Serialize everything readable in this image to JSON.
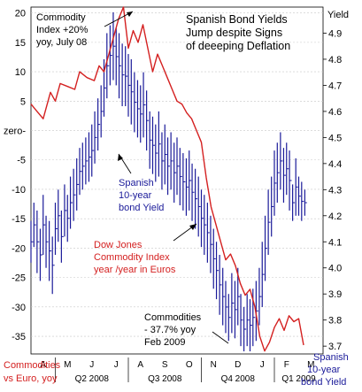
{
  "title_lines": [
    "Spanish Bond Yields",
    "Jump despite Signs",
    "of deeeping Deflation"
  ],
  "colors": {
    "commodity": "#d42020",
    "yield": "#1a1a99",
    "text": "#000000",
    "grid": "#c8c8c8"
  },
  "annotations": {
    "commodity_peak": [
      "Commodity",
      "Index +20%",
      "yoy, July 08"
    ],
    "spanish_yield": [
      "Spanish",
      "10-year",
      "bond Yield"
    ],
    "dow_jones": [
      "Dow Jones",
      "Commodity Index",
      "year /year in Euros"
    ],
    "commodities_low": [
      "Commodities",
      "- 37.7% yoy",
      "Feb 2009"
    ]
  },
  "bottom_labels": {
    "left": [
      "Commodities",
      "vs Euro, yoy"
    ],
    "right": [
      "Spanish",
      "10-year",
      "bond Yield"
    ]
  },
  "chart_data": {
    "type": "line",
    "x": {
      "months": [
        "A",
        "M",
        "J",
        "J",
        "A",
        "S",
        "O",
        "N",
        "D",
        "J",
        "F",
        "M"
      ],
      "quarters": [
        "Q2 2008",
        "Q3 2008",
        "Q4 2008",
        "Q1 2009"
      ]
    },
    "left_axis": {
      "ylabel": "",
      "ylim": [
        -38,
        21
      ],
      "ticks": [
        20,
        15,
        10,
        5,
        0,
        -5,
        -10,
        -15,
        -20,
        -25,
        -30,
        -35
      ],
      "tick_labels": [
        "20",
        "15",
        "10",
        "5",
        "zero-",
        "-5",
        "-10",
        "-15",
        "-20",
        "-25",
        "-30",
        "-35"
      ]
    },
    "right_axis": {
      "ylabel": "Yield",
      "ylim": [
        3.67,
        5.0
      ],
      "ticks": [
        4.9,
        4.8,
        4.7,
        4.6,
        4.5,
        4.4,
        4.3,
        4.2,
        4.1,
        4.0,
        3.9,
        3.8,
        3.7
      ]
    },
    "grid": true,
    "series": [
      {
        "name": "Dow Jones Commodity Index year /year in Euros",
        "axis": "left",
        "style": "line",
        "x": [
          0.0,
          0.2,
          0.5,
          0.8,
          1.0,
          1.2,
          1.5,
          1.8,
          2.0,
          2.3,
          2.6,
          2.8,
          3.0,
          3.2,
          3.4,
          3.6,
          3.8,
          4.0,
          4.2,
          4.4,
          4.6,
          4.8,
          5.0,
          5.2,
          5.4,
          5.6,
          5.8,
          6.0,
          6.2,
          6.4,
          6.6,
          6.8,
          7.0,
          7.2,
          7.4,
          7.6,
          7.8,
          8.0,
          8.2,
          8.4,
          8.6,
          8.8,
          9.0,
          9.2,
          9.4,
          9.6,
          9.8,
          10.0,
          10.2,
          10.4,
          10.6,
          10.8,
          11.0,
          11.2
        ],
        "values": [
          4.5,
          3.5,
          2.0,
          6.5,
          5.0,
          8.0,
          7.5,
          7.0,
          10.0,
          9.0,
          8.5,
          11.0,
          10.0,
          13.0,
          16.0,
          19.0,
          21.0,
          14.0,
          17.0,
          15.0,
          18.0,
          14.0,
          10.0,
          13.0,
          11.0,
          9.0,
          7.0,
          5.0,
          4.5,
          3.0,
          2.0,
          0.0,
          -2.0,
          -8.0,
          -13.0,
          -16.0,
          -19.0,
          -22.0,
          -21.0,
          -23.0,
          -26.0,
          -28.0,
          -27.0,
          -30.0,
          -35.0,
          -37.5,
          -36.0,
          -33.5,
          -32.0,
          -34.0,
          -31.5,
          -32.5,
          -32.0,
          -36.5
        ]
      },
      {
        "name": "Spanish 10-year bond Yield",
        "axis": "right",
        "style": "hilo",
        "x": [
          0.0,
          0.12,
          0.25,
          0.38,
          0.5,
          0.62,
          0.75,
          0.88,
          1.0,
          1.12,
          1.25,
          1.38,
          1.5,
          1.62,
          1.75,
          1.88,
          2.0,
          2.12,
          2.25,
          2.38,
          2.5,
          2.62,
          2.75,
          2.88,
          3.0,
          3.12,
          3.25,
          3.38,
          3.5,
          3.62,
          3.75,
          3.88,
          4.0,
          4.12,
          4.25,
          4.38,
          4.5,
          4.62,
          4.75,
          4.88,
          5.0,
          5.12,
          5.25,
          5.38,
          5.5,
          5.62,
          5.75,
          5.88,
          6.0,
          6.12,
          6.25,
          6.38,
          6.5,
          6.62,
          6.75,
          6.88,
          7.0,
          7.12,
          7.25,
          7.38,
          7.5,
          7.62,
          7.75,
          7.88,
          8.0,
          8.12,
          8.25,
          8.38,
          8.5,
          8.62,
          8.75,
          8.88,
          9.0,
          9.12,
          9.25,
          9.38,
          9.5,
          9.62,
          9.75,
          9.88,
          10.0,
          10.12,
          10.25,
          10.38,
          10.5,
          10.62,
          10.75,
          10.88,
          11.0,
          11.12,
          11.25
        ],
        "high": [
          4.18,
          4.25,
          4.22,
          4.15,
          4.28,
          4.2,
          4.18,
          4.12,
          4.25,
          4.3,
          4.22,
          4.32,
          4.28,
          4.35,
          4.38,
          4.42,
          4.46,
          4.48,
          4.5,
          4.52,
          4.55,
          4.6,
          4.65,
          4.7,
          4.8,
          4.9,
          4.93,
          4.98,
          4.92,
          4.9,
          4.86,
          4.85,
          4.82,
          4.8,
          4.75,
          4.72,
          4.7,
          4.75,
          4.68,
          4.6,
          4.58,
          4.55,
          4.6,
          4.52,
          4.55,
          4.5,
          4.52,
          4.48,
          4.5,
          4.46,
          4.44,
          4.42,
          4.45,
          4.4,
          4.38,
          4.35,
          4.3,
          4.28,
          4.25,
          4.2,
          4.15,
          4.1,
          4.05,
          4.0,
          3.95,
          3.9,
          3.98,
          3.95,
          4.0,
          3.9,
          3.85,
          3.9,
          3.88,
          3.92,
          3.95,
          4.0,
          4.1,
          4.2,
          4.3,
          4.35,
          4.45,
          4.48,
          4.52,
          4.46,
          4.48,
          4.45,
          4.32,
          4.42,
          4.35,
          4.33,
          4.3
        ],
        "low": [
          4.02,
          4.08,
          3.98,
          3.95,
          4.05,
          4.0,
          3.95,
          3.9,
          4.05,
          4.1,
          4.02,
          4.12,
          4.1,
          4.15,
          4.18,
          4.22,
          4.28,
          4.3,
          4.32,
          4.33,
          4.35,
          4.4,
          4.45,
          4.5,
          4.58,
          4.65,
          4.7,
          4.72,
          4.7,
          4.65,
          4.62,
          4.62,
          4.58,
          4.55,
          4.52,
          4.5,
          4.48,
          4.5,
          4.45,
          4.38,
          4.36,
          4.33,
          4.35,
          4.3,
          4.32,
          4.28,
          4.3,
          4.25,
          4.28,
          4.24,
          4.22,
          4.2,
          4.22,
          4.18,
          4.15,
          4.12,
          4.08,
          4.05,
          4.02,
          3.98,
          3.92,
          3.88,
          3.82,
          3.78,
          3.75,
          3.72,
          3.75,
          3.73,
          3.78,
          3.7,
          3.68,
          3.7,
          3.68,
          3.7,
          3.72,
          3.78,
          3.85,
          3.95,
          4.05,
          4.12,
          4.2,
          4.25,
          4.3,
          4.25,
          4.28,
          4.22,
          4.18,
          4.2,
          4.2,
          4.18,
          4.2
        ]
      }
    ]
  }
}
